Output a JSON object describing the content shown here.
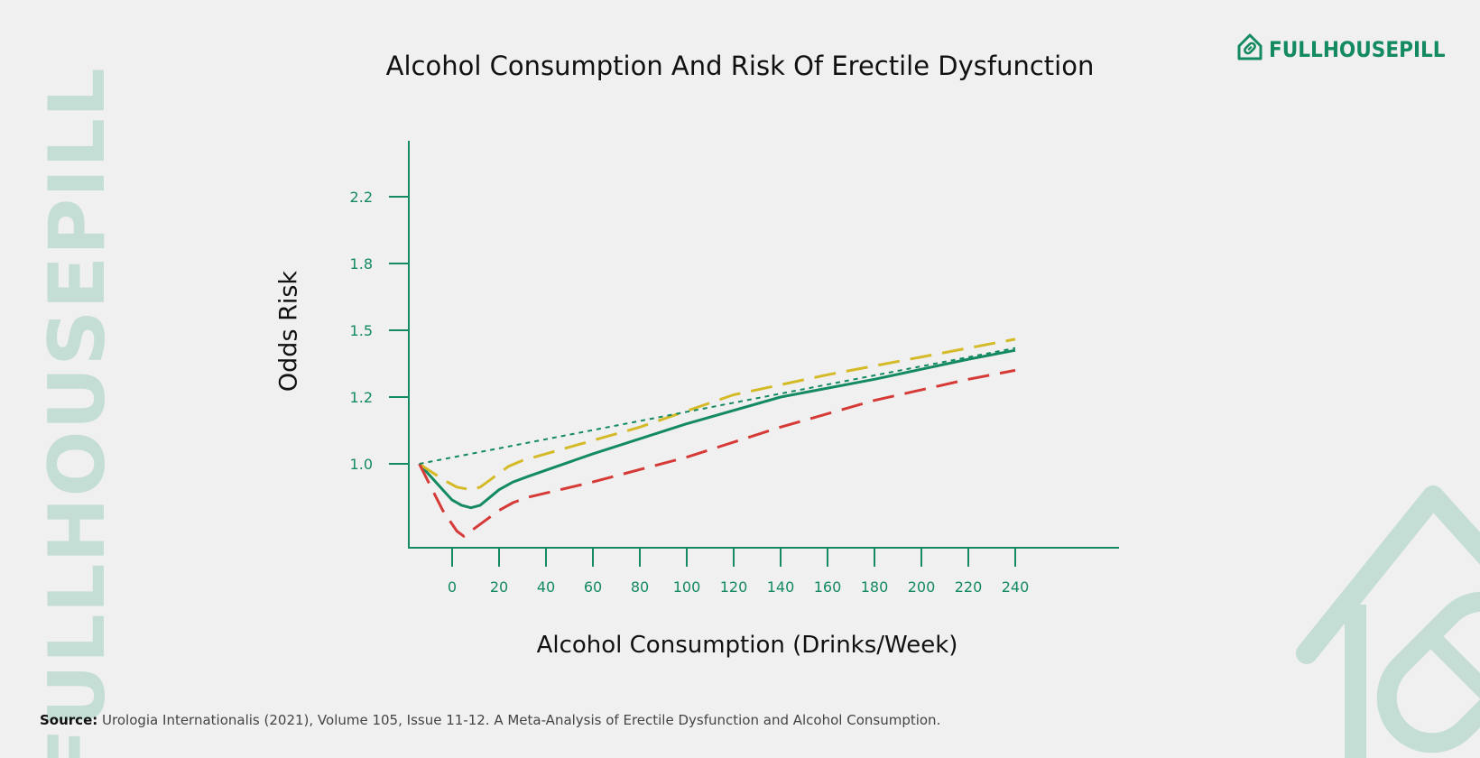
{
  "watermark": {
    "text": "FULLHOUSEPILL"
  },
  "brand": {
    "name": "FULLHOUSEPILL",
    "icon": "house-pill-icon",
    "color": "#138a60"
  },
  "source": {
    "label": "Source:",
    "text": "Urologia Internationalis (2021), Volume 105, Issue 11-12. A Meta-Analysis of Erectile Dysfunction and Alcohol Consumption."
  },
  "colors": {
    "axis": "#138a60",
    "watermark": "#c4ddd5",
    "background": "#f0f0f0"
  },
  "chart_data": {
    "type": "line",
    "title": "Alcohol Consumption And Risk Of Erectile Dysfunction",
    "xlabel": "Alcohol Consumption (Drinks/Week)",
    "ylabel": "Odds Risk",
    "x_ticks": [
      0,
      20,
      40,
      60,
      80,
      100,
      120,
      140,
      160,
      180,
      200,
      220,
      240
    ],
    "y_ticks": [
      "1.0",
      "1.2",
      "1.5",
      "1.8",
      "2.2"
    ],
    "xlim": [
      -20,
      285
    ],
    "ylim": [
      0.65,
      2.4
    ],
    "grid": false,
    "legend": "none",
    "series": [
      {
        "style": "solid",
        "color": "#138a60",
        "points": [
          [
            -14,
            1.0
          ],
          [
            -4,
            0.9
          ],
          [
            0,
            0.86
          ],
          [
            4,
            0.84
          ],
          [
            8,
            0.83
          ],
          [
            12,
            0.84
          ],
          [
            16,
            0.87
          ],
          [
            20,
            0.9
          ],
          [
            26,
            0.93
          ],
          [
            32,
            0.95
          ],
          [
            60,
            1.03
          ],
          [
            100,
            1.12
          ],
          [
            140,
            1.2
          ],
          [
            180,
            1.28
          ],
          [
            220,
            1.37
          ],
          [
            240,
            1.41
          ]
        ]
      },
      {
        "style": "dashed",
        "color": "#d5ba28",
        "points": [
          [
            -14,
            1.0
          ],
          [
            -4,
            0.94
          ],
          [
            2,
            0.91
          ],
          [
            8,
            0.9
          ],
          [
            12,
            0.91
          ],
          [
            18,
            0.95
          ],
          [
            24,
            0.99
          ],
          [
            30,
            1.01
          ],
          [
            40,
            1.03
          ],
          [
            80,
            1.11
          ],
          [
            120,
            1.21
          ],
          [
            160,
            1.3
          ],
          [
            200,
            1.38
          ],
          [
            240,
            1.46
          ]
        ]
      },
      {
        "style": "dashed",
        "color": "#d63a37",
        "points": [
          [
            -14,
            1.0
          ],
          [
            -4,
            0.82
          ],
          [
            2,
            0.74
          ],
          [
            5,
            0.72
          ],
          [
            8,
            0.74
          ],
          [
            14,
            0.78
          ],
          [
            20,
            0.82
          ],
          [
            26,
            0.85
          ],
          [
            32,
            0.87
          ],
          [
            60,
            0.93
          ],
          [
            100,
            1.02
          ],
          [
            140,
            1.11
          ],
          [
            180,
            1.19
          ],
          [
            220,
            1.28
          ],
          [
            240,
            1.32
          ]
        ]
      },
      {
        "style": "dotted",
        "color": "#138a60",
        "points": [
          [
            -14,
            1.0
          ],
          [
            240,
            1.42
          ]
        ]
      }
    ]
  }
}
